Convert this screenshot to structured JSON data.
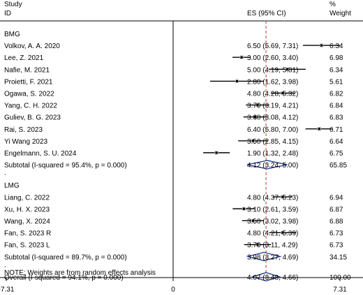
{
  "chart_data": {
    "type": "forest",
    "headers": {
      "study_line1": "Study",
      "study_line2": "ID",
      "es": "ES (95% CI)",
      "weight_line1": "%",
      "weight_line2": "Weight"
    },
    "xlim": [
      -7.31,
      7.31
    ],
    "xticks": [
      "-7.31",
      "0",
      "7.31"
    ],
    "null_line": 0,
    "overall_dashed_line": 4.07,
    "colors": {
      "marker": "#000000",
      "diamond": "#1f3a8a",
      "dashed_line": "#c0392b"
    },
    "groups": [
      {
        "label": "BMG",
        "studies": [
          {
            "name": "Volkov, A. A. 2020",
            "es": 6.5,
            "lo": 5.69,
            "hi": 7.31,
            "ci_text": "6.50 (5.69, 7.31)",
            "weight": "6.34"
          },
          {
            "name": "Lee, Z. 2021",
            "es": 3.0,
            "lo": 2.6,
            "hi": 3.4,
            "ci_text": "3.00 (2.60, 3.40)",
            "weight": "6.98"
          },
          {
            "name": "Nafie, M. 2021",
            "es": 5.0,
            "lo": 4.19,
            "hi": 5.81,
            "ci_text": "5.00 (4.19, 5.81)",
            "weight": "6.34"
          },
          {
            "name": "Proietti, F. 2021",
            "es": 2.8,
            "lo": 1.62,
            "hi": 3.98,
            "ci_text": "2.80 (1.62, 3.98)",
            "weight": "5.61"
          },
          {
            "name": "Ogawa, S. 2022",
            "es": 4.8,
            "lo": 4.28,
            "hi": 5.32,
            "ci_text": "4.80 (4.28, 5.32)",
            "weight": "6.82"
          },
          {
            "name": "Yang, C. H. 2022",
            "es": 3.7,
            "lo": 3.19,
            "hi": 4.21,
            "ci_text": "3.70 (3.19, 4.21)",
            "weight": "6.84"
          },
          {
            "name": "Guliev, B. G. 2023",
            "es": 3.6,
            "lo": 3.08,
            "hi": 4.12,
            "ci_text": "3.60 (3.08, 4.12)",
            "weight": "6.83"
          },
          {
            "name": "Rai, S. 2023",
            "es": 6.4,
            "lo": 5.8,
            "hi": 7.0,
            "ci_text": "6.40 (5.80, 7.00)",
            "weight": "6.71"
          },
          {
            "name": "Yi Wang 2023",
            "es": 3.5,
            "lo": 2.85,
            "hi": 4.15,
            "ci_text": "3.50 (2.85, 4.15)",
            "weight": "6.64"
          },
          {
            "name": "Engelmann, S. U. 2024",
            "es": 1.9,
            "lo": 1.32,
            "hi": 2.48,
            "ci_text": "1.90 (1.32, 2.48)",
            "weight": "6.75"
          }
        ],
        "subtotal": {
          "label": "Subtotal  (I-squared = 95.4%, p = 0.000)",
          "es": 4.12,
          "lo": 3.24,
          "hi": 5.0,
          "ci_text": "4.12 (3.24, 5.00)",
          "weight": "65.85"
        }
      },
      {
        "label": "LMG",
        "studies": [
          {
            "name": "Liang, C. 2022",
            "es": 4.8,
            "lo": 4.37,
            "hi": 5.23,
            "ci_text": "4.80 (4.37, 5.23)",
            "weight": "6.94"
          },
          {
            "name": "Xu, H. X. 2023",
            "es": 3.1,
            "lo": 2.61,
            "hi": 3.59,
            "ci_text": "3.10 (2.61, 3.59)",
            "weight": "6.87"
          },
          {
            "name": "Wang, X. 2024",
            "es": 3.5,
            "lo": 3.02,
            "hi": 3.98,
            "ci_text": "3.50 (3.02, 3.98)",
            "weight": "6.88"
          },
          {
            "name": "Fan, S. 2023 R",
            "es": 4.8,
            "lo": 4.21,
            "hi": 5.39,
            "ci_text": "4.80 (4.21, 5.39)",
            "weight": "6.73"
          },
          {
            "name": "Fan, S. 2023 L",
            "es": 3.7,
            "lo": 3.11,
            "hi": 4.29,
            "ci_text": "3.70 (3.11, 4.29)",
            "weight": "6.73"
          }
        ],
        "subtotal": {
          "label": "Subtotal  (I-squared = 89.7%, p = 0.000)",
          "es": 3.98,
          "lo": 3.27,
          "hi": 4.69,
          "ci_text": "3.98 (3.27, 4.69)",
          "weight": "34.15"
        }
      }
    ],
    "overall": {
      "label": "Overall  (I-squared = 94.1%, p = 0.000)",
      "es": 4.07,
      "lo": 3.48,
      "hi": 4.66,
      "ci_text": "4.07 (3.48, 4.66)",
      "weight": "100.00"
    },
    "dot_label": ".",
    "note": "NOTE: Weights are from random effects analysis"
  }
}
